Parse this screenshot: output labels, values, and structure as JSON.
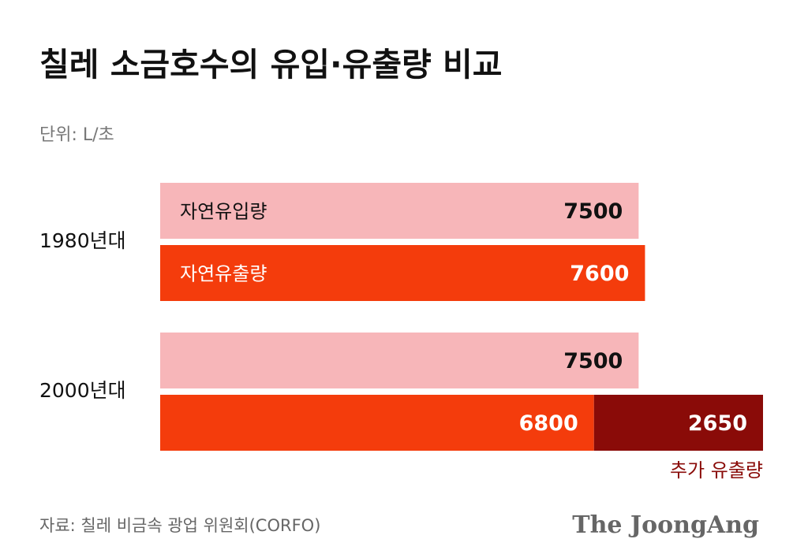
{
  "chart_data": {
    "type": "bar",
    "stacked": true,
    "title": "칠레 소금호수의 유입·유출량 비교",
    "subtitle": "단위: L/초",
    "source": "자료: 칠레 비금속 광업 위원회(CORFO)",
    "brand": "The JoongAng",
    "categories": [
      "1980년대",
      "2000년대"
    ],
    "series": [
      {
        "name": "자연유입량",
        "color": "#f7b6b9",
        "text_color": "#111111",
        "row": 0,
        "values": [
          7500,
          7500
        ]
      },
      {
        "name": "자연유출량",
        "color": "#f43c0c",
        "text_color": "#ffffff",
        "row": 1,
        "values": [
          7600,
          6800
        ]
      },
      {
        "name": "추가 유출량",
        "color": "#8a0b08",
        "text_color": "#ffffff",
        "row": 1,
        "values": [
          null,
          2650
        ]
      }
    ]
  }
}
